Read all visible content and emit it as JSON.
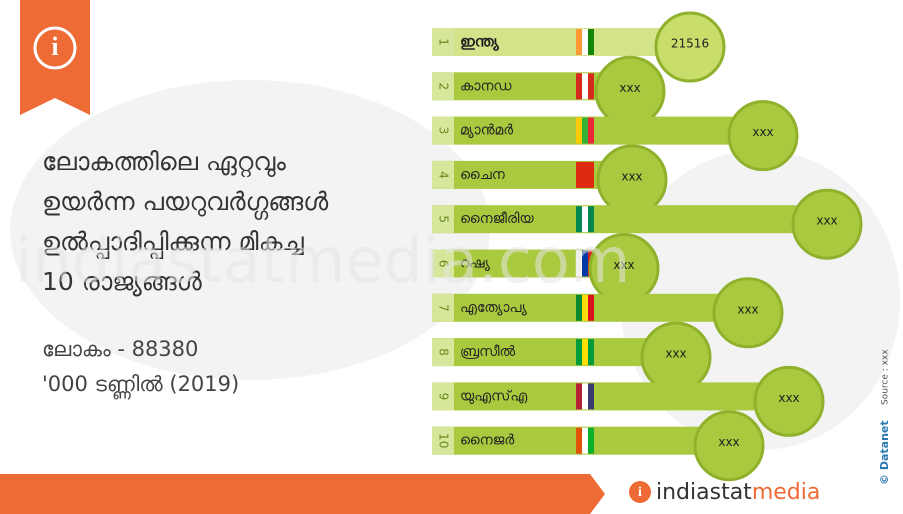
{
  "header": {
    "title_lines": [
      "ലോകത്തിലെ ഏറ്റവും",
      "ഉയർന്ന പയറുവർഗ്ഗങ്ങൾ",
      "ഉൽപ്പാദിപ്പിക്കുന്ന മികച്ച",
      "10 രാജ്യങ്ങൾ"
    ],
    "world_total": "ലോകം - 88380",
    "unit": "'000 ടണ്ണിൽ (2019)"
  },
  "rows": [
    {
      "rank": 1,
      "country": "ഇന്ത്യ",
      "value": "21516"
    },
    {
      "rank": 2,
      "country": "കാനഡ",
      "value": "xxx"
    },
    {
      "rank": 3,
      "country": "മ്യാൻമർ",
      "value": "xxx"
    },
    {
      "rank": 4,
      "country": "ചൈന",
      "value": "xxx"
    },
    {
      "rank": 5,
      "country": "നൈജീരിയ",
      "value": "xxx"
    },
    {
      "rank": 6,
      "country": "റഷ്യ",
      "value": "xxx"
    },
    {
      "rank": 7,
      "country": "എത്യോപ്യ",
      "value": "xxx"
    },
    {
      "rank": 8,
      "country": "ബ്രസീൽ",
      "value": "xxx"
    },
    {
      "rank": 9,
      "country": "യുഎസ്എ",
      "value": "xxx"
    },
    {
      "rank": 10,
      "country": "നൈജർ",
      "value": "xxx"
    }
  ],
  "footer": {
    "brand_a": "indiastat",
    "brand_b": "media",
    "credit": "© Datanet",
    "source": "Source : xxx",
    "watermark": "indiastatmedia.com"
  }
}
